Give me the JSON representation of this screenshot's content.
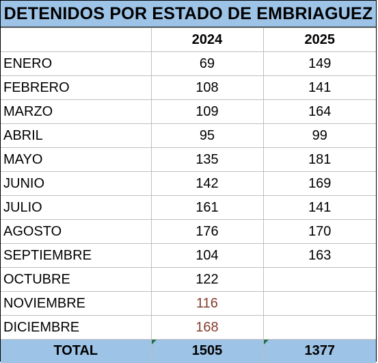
{
  "title": "DETENIDOS POR ESTADO DE EMBRIAGUEZ",
  "columns": [
    "",
    "2024",
    "2025"
  ],
  "rows": [
    {
      "month": "ENERO",
      "y2024": "69",
      "y2025": "149"
    },
    {
      "month": "FEBRERO",
      "y2024": "108",
      "y2025": "141"
    },
    {
      "month": "MARZO",
      "y2024": "109",
      "y2025": "164"
    },
    {
      "month": "ABRIL",
      "y2024": "95",
      "y2025": "99"
    },
    {
      "month": "MAYO",
      "y2024": "135",
      "y2025": "181"
    },
    {
      "month": "JUNIO",
      "y2024": "142",
      "y2025": "169"
    },
    {
      "month": "JULIO",
      "y2024": "161",
      "y2025": "141"
    },
    {
      "month": "AGOSTO",
      "y2024": "176",
      "y2025": "170"
    },
    {
      "month": "SEPTIEMBRE",
      "y2024": "104",
      "y2025": "163"
    },
    {
      "month": "OCTUBRE",
      "y2024": "122",
      "y2025": ""
    },
    {
      "month": "NOVIEMBRE",
      "y2024": "116",
      "y2025": ""
    },
    {
      "month": "DICIEMBRE",
      "y2024": "168",
      "y2025": ""
    }
  ],
  "total": {
    "label": "TOTAL",
    "y2024": "1505",
    "y2025": "1377"
  },
  "colors": {
    "header_fill": "#9dc3e6",
    "highlight_text": "#843c2c",
    "comment_marker": "#217346"
  }
}
